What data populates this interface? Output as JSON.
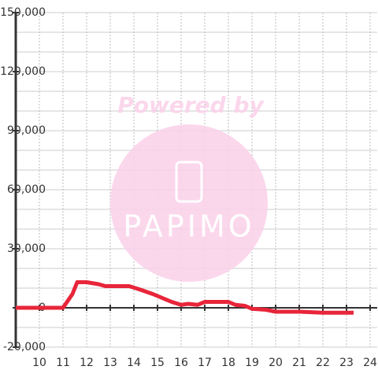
{
  "chart_data": {
    "type": "line",
    "watermark": [
      "Powered by",
      "PAPIMO"
    ],
    "x": [
      9,
      11,
      11.4,
      11.6,
      12,
      12.5,
      12.8,
      13.8,
      14.2,
      14.8,
      15.2,
      15.6,
      16,
      16.3,
      16.7,
      17,
      18,
      18.3,
      18.7,
      19,
      19.6,
      20,
      21,
      22,
      23.3
    ],
    "series": [
      {
        "color": "#e8253a",
        "values": [
          0,
          0,
          7000,
          13000,
          13000,
          12000,
          11000,
          11000,
          9500,
          7000,
          5000,
          3000,
          1500,
          2000,
          1500,
          3000,
          3000,
          1500,
          1000,
          -500,
          -1000,
          -2000,
          -2000,
          -2500,
          -2500
        ]
      }
    ],
    "xlim": [
      9,
      24.3
    ],
    "xticks": [
      10,
      11,
      12,
      13,
      14,
      15,
      16,
      17,
      18,
      19,
      20,
      21,
      22,
      23,
      24
    ],
    "ylim": [
      -20000,
      150000
    ],
    "yticks": [
      {
        "value": -20000,
        "label": "-20,000"
      },
      0,
      {
        "value": 30000,
        "label": "30,000"
      },
      {
        "value": 60000,
        "label": "60,000"
      },
      {
        "value": 90000,
        "label": "90,000"
      },
      {
        "value": 120000,
        "label": "120,000"
      },
      {
        "value": 150000,
        "label": "150,000"
      }
    ],
    "ygrid": [
      -20000,
      -10000,
      0,
      10000,
      20000,
      30000,
      40000,
      50000,
      60000,
      70000,
      80000,
      90000,
      100000,
      110000,
      120000,
      130000,
      140000,
      150000
    ],
    "grid": true
  }
}
